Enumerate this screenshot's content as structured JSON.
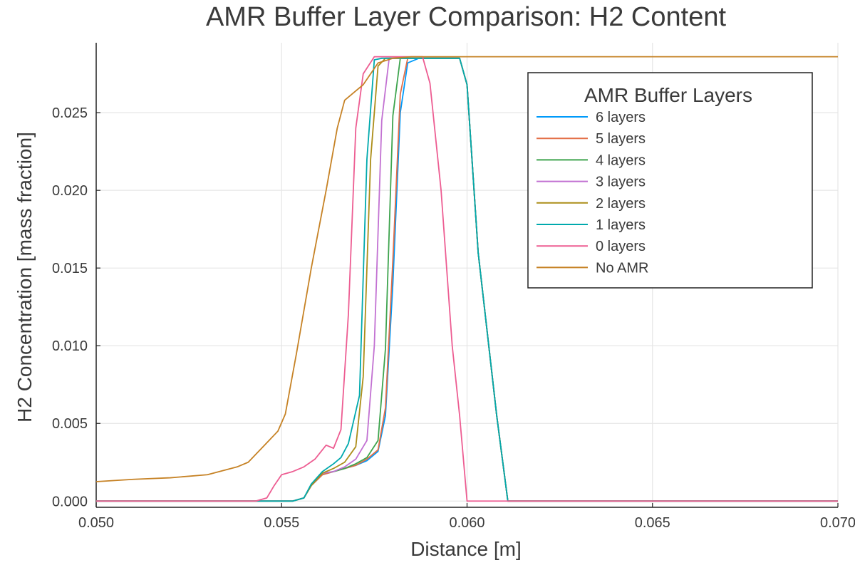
{
  "chart_data": {
    "type": "line",
    "title": "AMR Buffer Layer Comparison: H2 Content",
    "xlabel": "Distance [m]",
    "ylabel": "H2 Concentration [mass fraction]",
    "xlim": [
      0.05,
      0.07
    ],
    "ylim": [
      -0.0004,
      0.0295
    ],
    "x_ticks": [
      0.05,
      0.055,
      0.06,
      0.065,
      0.07
    ],
    "x_tick_labels": [
      "0.050",
      "0.055",
      "0.060",
      "0.065",
      "0.070"
    ],
    "y_ticks": [
      0.0,
      0.005,
      0.01,
      0.015,
      0.02,
      0.025
    ],
    "y_tick_labels": [
      "0.000",
      "0.005",
      "0.010",
      "0.015",
      "0.020",
      "0.025"
    ],
    "grid": true,
    "legend": {
      "title": "AMR Buffer Layers",
      "position": "top-right"
    },
    "series": [
      {
        "name": "6 layers",
        "color": "#009AFA",
        "points": [
          [
            0.05,
            0.0
          ],
          [
            0.0553,
            0.0
          ],
          [
            0.0556,
            0.0002
          ],
          [
            0.0558,
            0.001
          ],
          [
            0.0561,
            0.0017
          ],
          [
            0.0564,
            0.0019
          ],
          [
            0.0567,
            0.0021
          ],
          [
            0.057,
            0.0023
          ],
          [
            0.0573,
            0.0026
          ],
          [
            0.0576,
            0.0032
          ],
          [
            0.0578,
            0.0055
          ],
          [
            0.058,
            0.014
          ],
          [
            0.0582,
            0.025
          ],
          [
            0.0584,
            0.0282
          ],
          [
            0.0587,
            0.0285
          ],
          [
            0.0598,
            0.0285
          ],
          [
            0.06,
            0.0268
          ],
          [
            0.0603,
            0.016
          ],
          [
            0.0608,
            0.0055
          ],
          [
            0.0611,
            0.0
          ],
          [
            0.07,
            0.0
          ]
        ]
      },
      {
        "name": "5 layers",
        "color": "#E36F47",
        "points": [
          [
            0.05,
            0.0
          ],
          [
            0.0553,
            0.0
          ],
          [
            0.0556,
            0.0002
          ],
          [
            0.0558,
            0.001
          ],
          [
            0.0561,
            0.0017
          ],
          [
            0.0564,
            0.0019
          ],
          [
            0.0567,
            0.0021
          ],
          [
            0.057,
            0.0023
          ],
          [
            0.0573,
            0.0027
          ],
          [
            0.0576,
            0.0033
          ],
          [
            0.0578,
            0.006
          ],
          [
            0.058,
            0.0155
          ],
          [
            0.0582,
            0.0262
          ],
          [
            0.0584,
            0.0285
          ],
          [
            0.0598,
            0.0285
          ],
          [
            0.06,
            0.0268
          ],
          [
            0.0603,
            0.016
          ],
          [
            0.0608,
            0.0055
          ],
          [
            0.0611,
            0.0
          ],
          [
            0.07,
            0.0
          ]
        ]
      },
      {
        "name": "4 layers",
        "color": "#3EA44E",
        "points": [
          [
            0.05,
            0.0
          ],
          [
            0.0553,
            0.0
          ],
          [
            0.0556,
            0.0002
          ],
          [
            0.0558,
            0.001
          ],
          [
            0.0561,
            0.0018
          ],
          [
            0.0564,
            0.0019
          ],
          [
            0.0567,
            0.0021
          ],
          [
            0.057,
            0.0024
          ],
          [
            0.0573,
            0.0028
          ],
          [
            0.0576,
            0.0039
          ],
          [
            0.0578,
            0.0098
          ],
          [
            0.058,
            0.0248
          ],
          [
            0.0582,
            0.0285
          ],
          [
            0.0598,
            0.0285
          ],
          [
            0.06,
            0.0268
          ],
          [
            0.0603,
            0.016
          ],
          [
            0.0608,
            0.0055
          ],
          [
            0.0611,
            0.0
          ],
          [
            0.07,
            0.0
          ]
        ]
      },
      {
        "name": "3 layers",
        "color": "#C271D2",
        "points": [
          [
            0.05,
            0.0
          ],
          [
            0.0553,
            0.0
          ],
          [
            0.0556,
            0.0002
          ],
          [
            0.0558,
            0.001
          ],
          [
            0.0561,
            0.0018
          ],
          [
            0.0564,
            0.0019
          ],
          [
            0.0567,
            0.0022
          ],
          [
            0.057,
            0.0027
          ],
          [
            0.0573,
            0.0039
          ],
          [
            0.0575,
            0.01
          ],
          [
            0.0577,
            0.0245
          ],
          [
            0.0579,
            0.0285
          ],
          [
            0.0598,
            0.0285
          ],
          [
            0.06,
            0.0268
          ],
          [
            0.0603,
            0.016
          ],
          [
            0.0608,
            0.0055
          ],
          [
            0.0611,
            0.0
          ],
          [
            0.07,
            0.0
          ]
        ]
      },
      {
        "name": "2 layers",
        "color": "#AC8D18",
        "points": [
          [
            0.05,
            0.0
          ],
          [
            0.0553,
            0.0
          ],
          [
            0.0556,
            0.0002
          ],
          [
            0.0558,
            0.001
          ],
          [
            0.0561,
            0.0018
          ],
          [
            0.0564,
            0.0021
          ],
          [
            0.0567,
            0.0025
          ],
          [
            0.057,
            0.0035
          ],
          [
            0.0572,
            0.008
          ],
          [
            0.0574,
            0.022
          ],
          [
            0.0576,
            0.028
          ],
          [
            0.0578,
            0.0285
          ],
          [
            0.0598,
            0.0285
          ],
          [
            0.06,
            0.0268
          ],
          [
            0.0603,
            0.016
          ],
          [
            0.0608,
            0.0055
          ],
          [
            0.0611,
            0.0
          ],
          [
            0.07,
            0.0
          ]
        ]
      },
      {
        "name": "1 layers",
        "color": "#00A9AD",
        "points": [
          [
            0.05,
            0.0
          ],
          [
            0.0553,
            0.0
          ],
          [
            0.0556,
            0.0002
          ],
          [
            0.0558,
            0.0011
          ],
          [
            0.0561,
            0.0019
          ],
          [
            0.0564,
            0.0024
          ],
          [
            0.0566,
            0.0028
          ],
          [
            0.0568,
            0.0037
          ],
          [
            0.0571,
            0.0068
          ],
          [
            0.0573,
            0.022
          ],
          [
            0.0575,
            0.0284
          ],
          [
            0.0577,
            0.0285
          ],
          [
            0.0598,
            0.0285
          ],
          [
            0.06,
            0.0268
          ],
          [
            0.0603,
            0.016
          ],
          [
            0.0608,
            0.0055
          ],
          [
            0.0611,
            0.0
          ],
          [
            0.07,
            0.0
          ]
        ]
      },
      {
        "name": "0 layers",
        "color": "#ED5D92",
        "points": [
          [
            0.05,
            0.0
          ],
          [
            0.0543,
            0.0
          ],
          [
            0.0546,
            0.0002
          ],
          [
            0.0548,
            0.001
          ],
          [
            0.055,
            0.0017
          ],
          [
            0.0553,
            0.0019
          ],
          [
            0.0556,
            0.0022
          ],
          [
            0.0559,
            0.0027
          ],
          [
            0.0562,
            0.0036
          ],
          [
            0.0564,
            0.0034
          ],
          [
            0.0566,
            0.0046
          ],
          [
            0.0568,
            0.012
          ],
          [
            0.057,
            0.024
          ],
          [
            0.0572,
            0.0275
          ],
          [
            0.0575,
            0.0286
          ],
          [
            0.0588,
            0.0286
          ],
          [
            0.059,
            0.0269
          ],
          [
            0.0593,
            0.02
          ],
          [
            0.0596,
            0.01
          ],
          [
            0.0598,
            0.0055
          ],
          [
            0.06,
            0.0
          ],
          [
            0.07,
            0.0
          ]
        ]
      },
      {
        "name": "No AMR",
        "color": "#C68225",
        "points": [
          [
            0.05,
            0.00125
          ],
          [
            0.051,
            0.0014
          ],
          [
            0.052,
            0.0015
          ],
          [
            0.053,
            0.0017
          ],
          [
            0.0538,
            0.0022
          ],
          [
            0.0541,
            0.0025
          ],
          [
            0.0545,
            0.0035
          ],
          [
            0.0549,
            0.0045
          ],
          [
            0.0551,
            0.0056
          ],
          [
            0.0554,
            0.0095
          ],
          [
            0.0558,
            0.015
          ],
          [
            0.0562,
            0.02
          ],
          [
            0.0565,
            0.024
          ],
          [
            0.0567,
            0.0258
          ],
          [
            0.0572,
            0.0268
          ],
          [
            0.0576,
            0.0282
          ],
          [
            0.058,
            0.0285
          ],
          [
            0.0585,
            0.0286
          ],
          [
            0.07,
            0.0286
          ]
        ]
      }
    ]
  }
}
